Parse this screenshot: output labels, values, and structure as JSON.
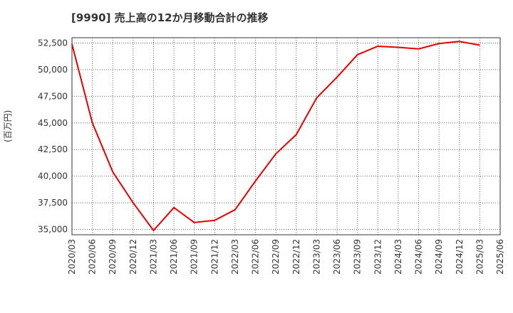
{
  "chart_data": {
    "type": "line",
    "title": "[9990]  売上高の12か月移動合計の推移",
    "xlabel": "",
    "ylabel": "(百万円)",
    "grid": true,
    "ylim": [
      34500,
      53000
    ],
    "x_ticks": [
      "2020/03",
      "2020/06",
      "2020/09",
      "2020/12",
      "2021/03",
      "2021/06",
      "2021/09",
      "2021/12",
      "2022/03",
      "2022/06",
      "2022/09",
      "2022/12",
      "2023/03",
      "2023/06",
      "2023/09",
      "2023/12",
      "2024/03",
      "2024/06",
      "2024/09",
      "2024/12",
      "2025/03",
      "2025/06"
    ],
    "y_ticks": [
      35000,
      37500,
      40000,
      42500,
      45000,
      47500,
      50000,
      52500
    ],
    "y_tick_labels": [
      "35,000",
      "37,500",
      "40,000",
      "42,500",
      "45,000",
      "47,500",
      "50,000",
      "52,500"
    ],
    "series": [
      {
        "name": "売上高",
        "color": "#e60000",
        "x": [
          "2020/03",
          "2020/06",
          "2020/09",
          "2020/12",
          "2021/03",
          "2021/06",
          "2021/09",
          "2021/12",
          "2022/03",
          "2022/06",
          "2022/09",
          "2022/12",
          "2023/03",
          "2023/06",
          "2023/09",
          "2023/12",
          "2024/03",
          "2024/06",
          "2024/09",
          "2024/12",
          "2025/03"
        ],
        "values": [
          52400,
          45000,
          40400,
          37500,
          34900,
          37050,
          35650,
          35850,
          36850,
          39550,
          42100,
          43900,
          47350,
          49300,
          51400,
          52200,
          52100,
          51950,
          52450,
          52650,
          52300
        ]
      }
    ]
  }
}
